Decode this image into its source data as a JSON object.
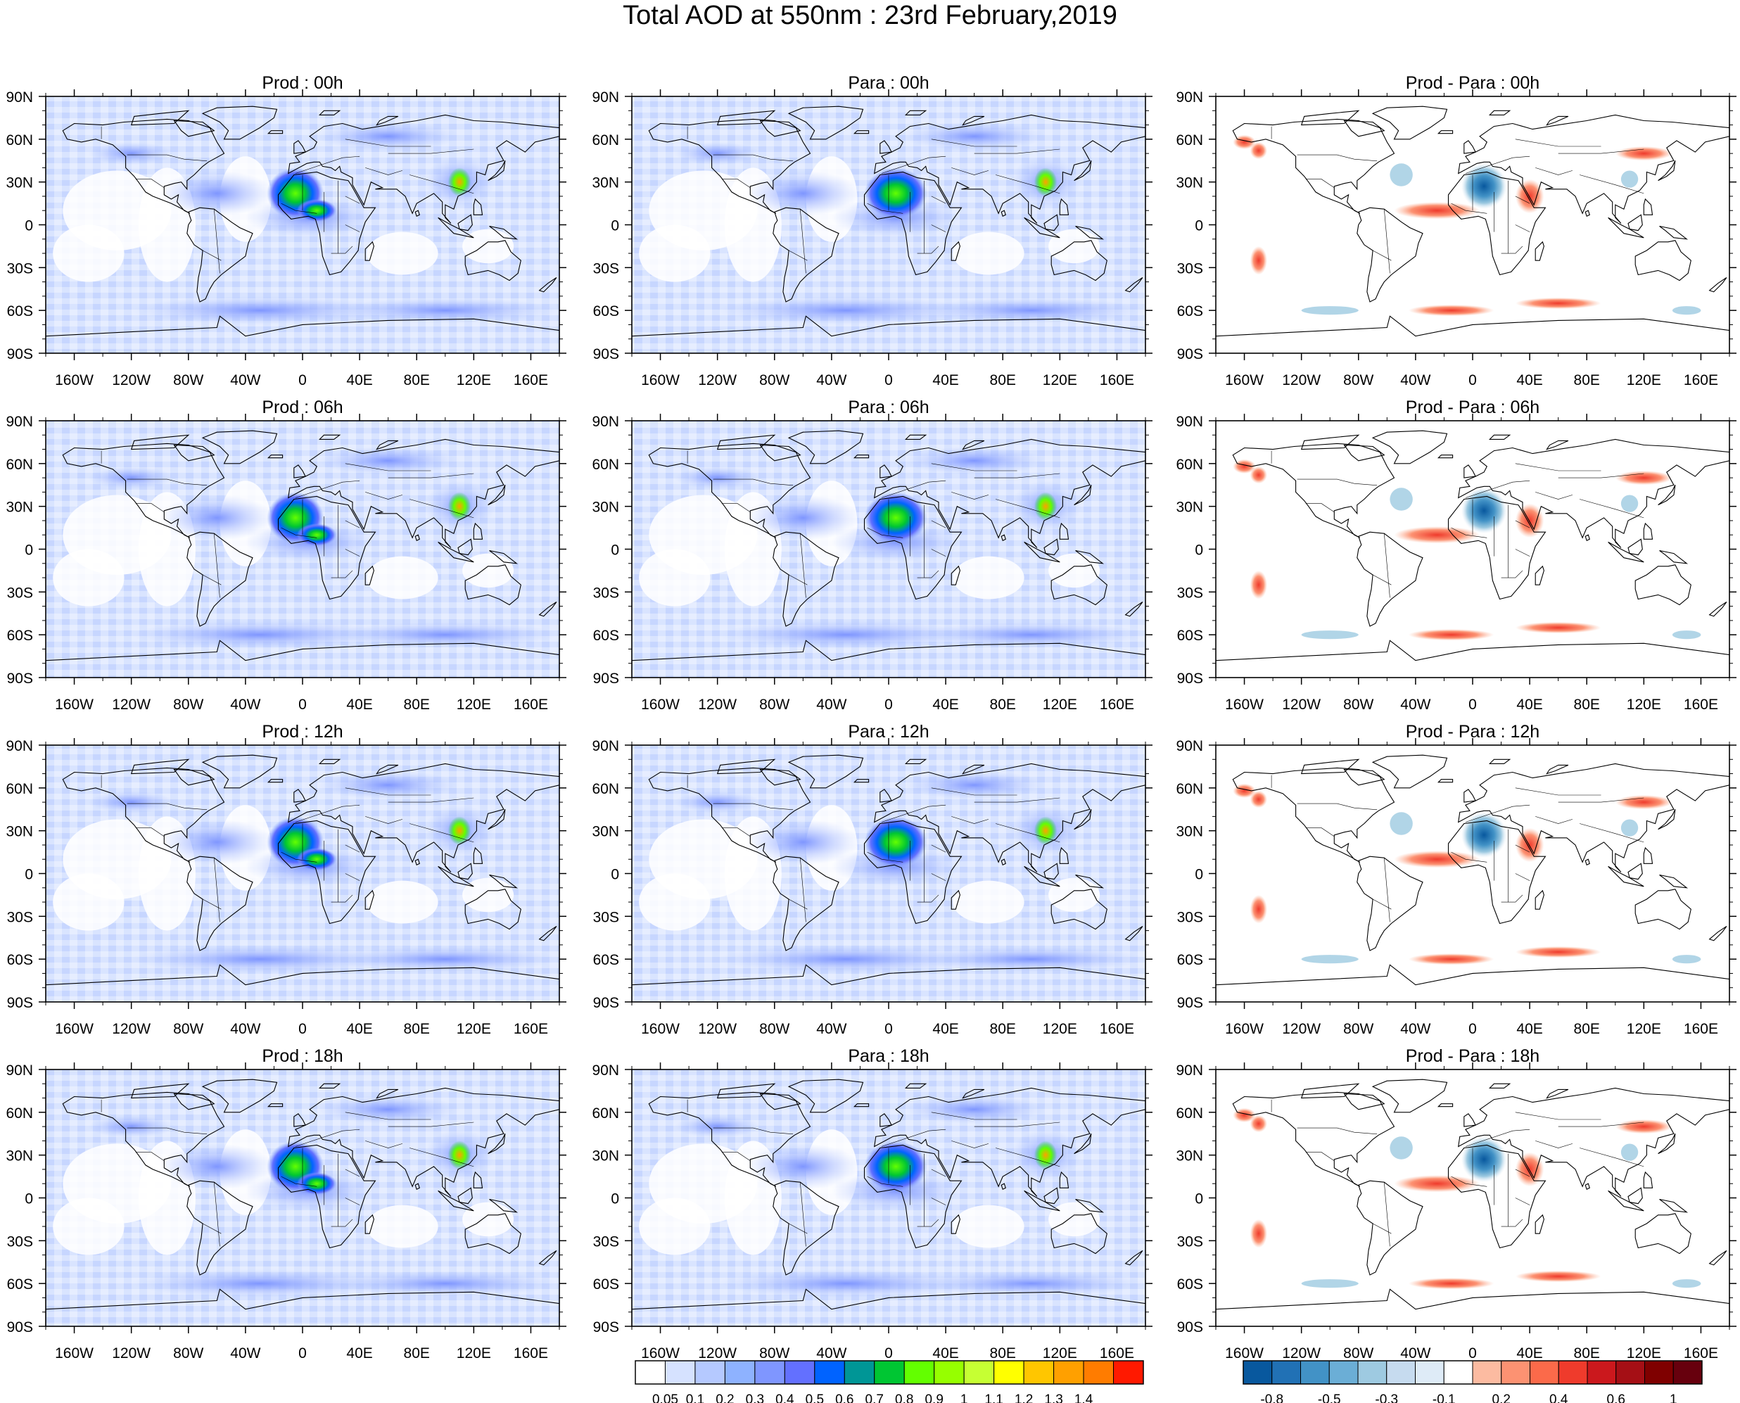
{
  "title": "Total AOD at 550nm : 23rd February,2019",
  "panels": [
    {
      "title": "Prod : 00h",
      "kind": "aod",
      "time": "00h"
    },
    {
      "title": "Para : 00h",
      "kind": "aod",
      "time": "00h"
    },
    {
      "title": "Prod - Para : 00h",
      "kind": "diff",
      "time": "00h"
    },
    {
      "title": "Prod : 06h",
      "kind": "aod",
      "time": "06h"
    },
    {
      "title": "Para : 06h",
      "kind": "aod",
      "time": "06h"
    },
    {
      "title": "Prod - Para : 06h",
      "kind": "diff",
      "time": "06h"
    },
    {
      "title": "Prod : 12h",
      "kind": "aod",
      "time": "12h"
    },
    {
      "title": "Para : 12h",
      "kind": "aod",
      "time": "12h"
    },
    {
      "title": "Prod - Para : 12h",
      "kind": "diff",
      "time": "12h"
    },
    {
      "title": "Prod : 18h",
      "kind": "aod",
      "time": "18h"
    },
    {
      "title": "Para : 18h",
      "kind": "aod",
      "time": "18h"
    },
    {
      "title": "Prod - Para : 18h",
      "kind": "diff",
      "time": "18h"
    }
  ],
  "axes": {
    "lat_labels": [
      "90N",
      "60N",
      "30N",
      "0",
      "30S",
      "60S",
      "90S"
    ],
    "lon_labels": [
      "160W",
      "120W",
      "80W",
      "40W",
      "0",
      "40E",
      "80E",
      "120E",
      "160E"
    ],
    "lat_values": [
      90,
      60,
      30,
      0,
      -30,
      -60,
      -90
    ],
    "lon_values": [
      -160,
      -120,
      -80,
      -40,
      0,
      40,
      80,
      120,
      160
    ]
  },
  "aod_colorbar": {
    "labels": [
      "0.05",
      "0.1",
      "0.2",
      "0.3",
      "0.4",
      "0.5",
      "0.6",
      "0.7",
      "0.8",
      "0.9",
      "1",
      "1.1",
      "1.2",
      "1.3",
      "1.4"
    ],
    "colors": [
      "#ffffff",
      "#d6e2ff",
      "#b5c9ff",
      "#8eb2ff",
      "#7f96ff",
      "#6370ff",
      "#0063ff",
      "#009696",
      "#00c633",
      "#63ff00",
      "#96ff00",
      "#c6ff33",
      "#ffff00",
      "#ffc600",
      "#ffa000",
      "#ff7c00",
      "#ff1900"
    ]
  },
  "diff_colorbar": {
    "labels": [
      "-0.8",
      "-0.5",
      "-0.3",
      "-0.1",
      "0.2",
      "0.4",
      "0.6",
      "1"
    ],
    "colors": [
      "#08589e",
      "#2171b5",
      "#4292c6",
      "#6baed6",
      "#9ecae1",
      "#c6dbef",
      "#deebf7",
      "#ffffff",
      "#fcbba1",
      "#fc9272",
      "#fb6a4a",
      "#ef3b2c",
      "#cb181d",
      "#a50f15",
      "#7f0000",
      "#67000d"
    ]
  }
}
